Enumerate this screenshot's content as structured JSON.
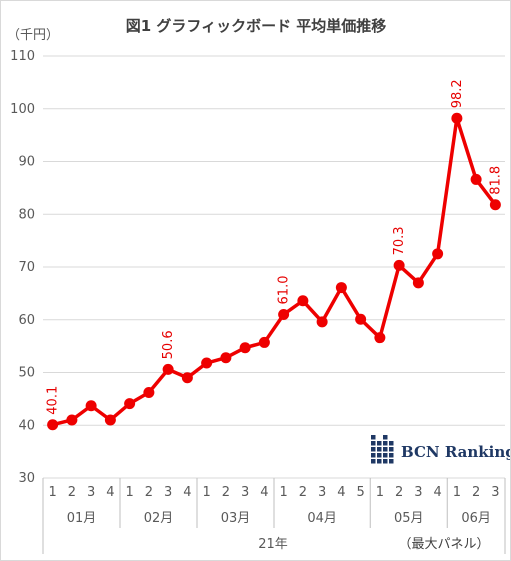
{
  "chart_data": {
    "type": "line",
    "title": "図1 グラフィックボード 平均単価推移",
    "unit_label": "（千円）",
    "ylim": [
      30,
      110
    ],
    "yticks": [
      30,
      40,
      50,
      60,
      70,
      80,
      90,
      100,
      110
    ],
    "grid": true,
    "x_labels": [
      "1",
      "2",
      "3",
      "4",
      "1",
      "2",
      "3",
      "4",
      "1",
      "2",
      "3",
      "4",
      "1",
      "2",
      "3",
      "4",
      "5",
      "1",
      "2",
      "3",
      "4",
      "1",
      "2",
      "3"
    ],
    "month_groups": [
      {
        "label": "01月",
        "count": 4
      },
      {
        "label": "02月",
        "count": 4
      },
      {
        "label": "03月",
        "count": 4
      },
      {
        "label": "04月",
        "count": 5
      },
      {
        "label": "05月",
        "count": 4
      },
      {
        "label": "06月",
        "count": 3
      }
    ],
    "year_label": "21年",
    "note": "（最大パネル）",
    "series": [
      {
        "color": "#ee0000",
        "values": [
          40.1,
          41.0,
          43.7,
          41.0,
          44.1,
          46.2,
          50.6,
          49.0,
          51.8,
          52.8,
          54.7,
          55.7,
          61.0,
          63.6,
          59.6,
          66.1,
          60.1,
          56.6,
          70.3,
          67.0,
          72.5,
          98.2,
          86.6,
          81.8
        ]
      }
    ],
    "data_labels": [
      {
        "index": 0,
        "text": "40.1"
      },
      {
        "index": 6,
        "text": "50.6"
      },
      {
        "index": 12,
        "text": "61.0"
      },
      {
        "index": 18,
        "text": "70.3"
      },
      {
        "index": 21,
        "text": "98.2"
      },
      {
        "index": 23,
        "text": "81.8"
      }
    ]
  },
  "logo": {
    "text": "BCN Ranking",
    "color": "#1f3864"
  }
}
